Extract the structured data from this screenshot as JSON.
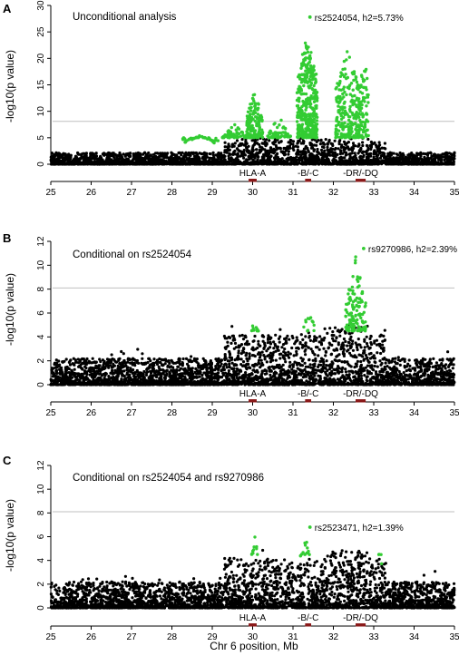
{
  "colors": {
    "background": "#ffffff",
    "nonsignificant_points": "#000000",
    "significant_points": "#33cc33",
    "threshold_line": "#bfbfbf",
    "gene_bar": "#8b1a1a",
    "axis": "#000000"
  },
  "xlabel": "Chr 6 position, Mb",
  "chart_data": [
    {
      "type": "scatter",
      "panel_letter": "A",
      "title": "Unconditional analysis",
      "ylabel": "-log10(p value)",
      "xlim": [
        25,
        35
      ],
      "ylim": [
        0,
        30
      ],
      "xticks": [
        25,
        26,
        27,
        28,
        29,
        30,
        31,
        32,
        33,
        34,
        35
      ],
      "yticks": [
        0,
        5,
        10,
        15,
        20,
        25,
        30
      ],
      "threshold": 8.1,
      "annotation": "rs2524054, h2=5.73%",
      "lead_snp": {
        "x": 31.42,
        "y": 27.8
      },
      "gene_regions": [
        {
          "label": "HLA-A",
          "start": 29.9,
          "end": 30.1
        },
        {
          "label": "-B/-C",
          "start": 31.3,
          "end": 31.45
        },
        {
          "label": "-DR/-DQ",
          "start": 32.55,
          "end": 32.8
        }
      ],
      "clusters": [
        {
          "center": 28.7,
          "width": 0.45,
          "peak": 5.5,
          "n": 50
        },
        {
          "center": 29.6,
          "width": 0.35,
          "peak": 8.0,
          "n": 70
        },
        {
          "center": 30.05,
          "width": 0.2,
          "peak": 14.0,
          "n": 160
        },
        {
          "center": 30.65,
          "width": 0.3,
          "peak": 9.0,
          "n": 60
        },
        {
          "center": 31.35,
          "width": 0.25,
          "peak": 25.0,
          "n": 380
        },
        {
          "center": 32.35,
          "width": 0.3,
          "peak": 22.0,
          "n": 230
        },
        {
          "center": 32.75,
          "width": 0.12,
          "peak": 22.0,
          "n": 80
        }
      ],
      "background_points": 2800
    },
    {
      "type": "scatter",
      "panel_letter": "B",
      "title": "Conditional on rs2524054",
      "ylabel": "-log10(p value)",
      "xlim": [
        25,
        35
      ],
      "ylim": [
        0,
        12
      ],
      "xticks": [
        25,
        26,
        27,
        28,
        29,
        30,
        31,
        32,
        33,
        34,
        35
      ],
      "yticks": [
        0,
        2,
        4,
        6,
        8,
        10,
        12
      ],
      "threshold": 8.1,
      "annotation": "rs9270986, h2=2.39%",
      "lead_snp": {
        "x": 32.75,
        "y": 11.4
      },
      "gene_regions": [
        {
          "label": "HLA-A",
          "start": 29.9,
          "end": 30.1
        },
        {
          "label": "-B/-C",
          "start": 31.3,
          "end": 31.45
        },
        {
          "label": "-DR/-DQ",
          "start": 32.55,
          "end": 32.8
        }
      ],
      "clusters": [
        {
          "center": 30.05,
          "width": 0.1,
          "peak": 6.2,
          "n": 12
        },
        {
          "center": 31.4,
          "width": 0.15,
          "peak": 7.0,
          "n": 12
        },
        {
          "center": 32.55,
          "width": 0.25,
          "peak": 10.8,
          "n": 130
        }
      ],
      "background_points": 3400
    },
    {
      "type": "scatter",
      "panel_letter": "C",
      "title": "Conditional on rs2524054 and rs9270986",
      "ylabel": "-log10(p value)",
      "xlim": [
        25,
        35
      ],
      "ylim": [
        0,
        12
      ],
      "xticks": [
        25,
        26,
        27,
        28,
        29,
        30,
        31,
        32,
        33,
        34,
        35
      ],
      "yticks": [
        0,
        2,
        4,
        6,
        8,
        10,
        12
      ],
      "threshold": 8.1,
      "annotation": "rs2523471, h2=1.39%",
      "lead_snp": {
        "x": 31.42,
        "y": 6.8
      },
      "gene_regions": [
        {
          "label": "HLA-A",
          "start": 29.9,
          "end": 30.1
        },
        {
          "label": "-B/-C",
          "start": 31.3,
          "end": 31.45
        },
        {
          "label": "-DR/-DQ",
          "start": 32.55,
          "end": 32.8
        }
      ],
      "clusters": [
        {
          "center": 30.05,
          "width": 0.08,
          "peak": 6.6,
          "n": 10
        },
        {
          "center": 31.3,
          "width": 0.12,
          "peak": 6.5,
          "n": 14
        },
        {
          "center": 33.15,
          "width": 0.05,
          "peak": 5.3,
          "n": 4
        }
      ],
      "background_points": 3400
    }
  ]
}
